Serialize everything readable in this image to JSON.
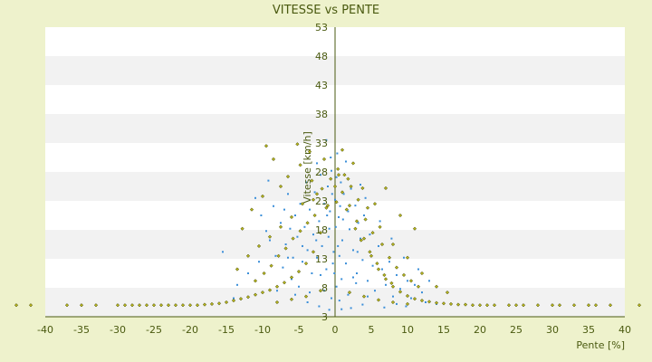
{
  "chart_data": {
    "type": "scatter",
    "title": "VITESSE vs PENTE",
    "xlabel": "Pente [%]",
    "ylabel": "Vitesse [km/h]",
    "xlim": [
      -40,
      40
    ],
    "ylim": [
      3,
      53
    ],
    "xticks": [
      "-40",
      "-35",
      "-30",
      "-25",
      "-20",
      "-15",
      "-10",
      "-5",
      "0",
      "5",
      "10",
      "15",
      "20",
      "25",
      "30",
      "35",
      "40"
    ],
    "yticks": [
      "53",
      "48",
      "43",
      "38",
      "33",
      "28",
      "23",
      "18",
      "13",
      "8",
      "3"
    ],
    "grid": "horizontal alternating bands",
    "legend": "none",
    "colors": {
      "background": "#eef2cc",
      "band_light": "#ffffff",
      "band_dark": "#f2f2f2",
      "axis": "#4a5a10",
      "series_a": "#3b8fd9",
      "series_b": "#b7b51f",
      "series_b_edge": "#3a3f00"
    },
    "series": [
      {
        "color": "#3b8fd9",
        "marker": "small dot",
        "points": [
          [
            -15.5,
            14.2
          ],
          [
            -11,
            23.5
          ],
          [
            -10.2,
            20.5
          ],
          [
            -9.5,
            17.8
          ],
          [
            -9,
            16.2
          ],
          [
            -8.5,
            22.1
          ],
          [
            -8.2,
            13.5
          ],
          [
            -7.5,
            19.2
          ],
          [
            -7.2,
            11.5
          ],
          [
            -6.8,
            15.5
          ],
          [
            -6.5,
            24.2
          ],
          [
            -6.2,
            18.2
          ],
          [
            -6,
            9.5
          ],
          [
            -5.8,
            13.2
          ],
          [
            -5.5,
            20.5
          ],
          [
            -5.2,
            16.8
          ],
          [
            -5,
            8.2
          ],
          [
            -4.8,
            22.5
          ],
          [
            -4.5,
            12.5
          ],
          [
            -4.2,
            18.5
          ],
          [
            -4,
            26.2
          ],
          [
            -3.8,
            14.5
          ],
          [
            -3.5,
            21.5
          ],
          [
            -3.2,
            10.5
          ],
          [
            -3,
            17.2
          ],
          [
            -2.8,
            24.5
          ],
          [
            -2.5,
            13.2
          ],
          [
            -2.2,
            19.5
          ],
          [
            -2,
            27.5
          ],
          [
            -1.8,
            15.2
          ],
          [
            -1.5,
            22.5
          ],
          [
            -1.2,
            11.2
          ],
          [
            -1,
            25.5
          ],
          [
            -0.8,
            18.2
          ],
          [
            -0.5,
            28.2
          ],
          [
            -0.2,
            14.2
          ],
          [
            0,
            23.2
          ],
          [
            0.2,
            27.1
          ],
          [
            0.5,
            20.2
          ],
          [
            0.8,
            26.2
          ],
          [
            1,
            16.2
          ],
          [
            1.2,
            24.2
          ],
          [
            1.5,
            12.2
          ],
          [
            1.8,
            21.2
          ],
          [
            2,
            18.1
          ],
          [
            2.2,
            25.1
          ],
          [
            2.5,
            14.5
          ],
          [
            2.8,
            22.2
          ],
          [
            3,
            10.5
          ],
          [
            3.2,
            19.2
          ],
          [
            3.5,
            16.5
          ],
          [
            3.8,
            12.8
          ],
          [
            4,
            20.5
          ],
          [
            4.5,
            9.2
          ],
          [
            4.8,
            17.2
          ],
          [
            5,
            13.5
          ],
          [
            5.5,
            7.5
          ],
          [
            6,
            15.2
          ],
          [
            6.5,
            11.2
          ],
          [
            7,
            8.5
          ],
          [
            7.5,
            12.5
          ],
          [
            8,
            6.5
          ],
          [
            8.5,
            10.2
          ],
          [
            9,
            7.8
          ],
          [
            9.5,
            13.2
          ],
          [
            10,
            9.2
          ],
          [
            10.5,
            6.2
          ],
          [
            11,
            8.5
          ],
          [
            11.5,
            11.2
          ],
          [
            12,
            7.2
          ],
          [
            13,
            9.2
          ],
          [
            -1.2,
            33.5
          ],
          [
            -0.6,
            30.5
          ],
          [
            0.3,
            31.2
          ],
          [
            -2.5,
            29.5
          ],
          [
            1.5,
            29.8
          ],
          [
            -9.2,
            26.5
          ],
          [
            -7,
            21.5
          ],
          [
            4.2,
            23.5
          ],
          [
            3.5,
            25.8
          ],
          [
            6.2,
            19.5
          ],
          [
            7.8,
            16.5
          ],
          [
            -12,
            10.5
          ],
          [
            -10.5,
            12.5
          ],
          [
            -13.5,
            8.5
          ],
          [
            -0.5,
            6.2
          ],
          [
            0.6,
            5.8
          ],
          [
            -1.5,
            7.5
          ],
          [
            1.8,
            6.8
          ],
          [
            2.5,
            9.8
          ],
          [
            -3.5,
            7.2
          ],
          [
            0.1,
            18.5
          ],
          [
            0.4,
            15.2
          ],
          [
            -0.3,
            12.2
          ],
          [
            -0.7,
            21.2
          ],
          [
            0.9,
            9.5
          ],
          [
            -0.9,
            16.8
          ],
          [
            0.6,
            13.5
          ],
          [
            -0.1,
            10.5
          ],
          [
            0.2,
            8.2
          ],
          [
            -0.4,
            24.2
          ],
          [
            0.7,
            22.1
          ],
          [
            1.1,
            19.8
          ],
          [
            -1.1,
            20.5
          ],
          [
            -2,
            10.2
          ],
          [
            -2.6,
            16.2
          ],
          [
            3.1,
            14.2
          ],
          [
            2.9,
            8.8
          ],
          [
            -4.5,
            15.2
          ],
          [
            5.2,
            11.8
          ],
          [
            -6.5,
            13.2
          ],
          [
            4.5,
            6.5
          ],
          [
            -5.5,
            6.8
          ],
          [
            8.5,
            5.2
          ],
          [
            -8,
            7.5
          ],
          [
            12.5,
            5.5
          ],
          [
            -11,
            6.8
          ],
          [
            9.8,
            4.8
          ],
          [
            -14,
            6.2
          ],
          [
            6.8,
            4.6
          ],
          [
            14,
            5.2
          ],
          [
            -2.2,
            4.8
          ],
          [
            2.2,
            4.5
          ],
          [
            -0.8,
            4.2
          ],
          [
            0.9,
            4.3
          ],
          [
            -3.8,
            5.5
          ],
          [
            3.8,
            5.1
          ]
        ]
      },
      {
        "color": "#b7b51f",
        "marker": "small diamond",
        "points": [
          [
            -44,
            5
          ],
          [
            -42,
            5
          ],
          [
            -37,
            5
          ],
          [
            -35,
            5
          ],
          [
            -33,
            5
          ],
          [
            -30,
            5
          ],
          [
            -29,
            5
          ],
          [
            -28,
            5
          ],
          [
            -27,
            5
          ],
          [
            -26,
            5
          ],
          [
            -25,
            5
          ],
          [
            -24,
            5
          ],
          [
            -23,
            5
          ],
          [
            -22,
            5
          ],
          [
            -21,
            5
          ],
          [
            -20,
            5
          ],
          [
            -19,
            5
          ],
          [
            -18,
            5.1
          ],
          [
            -17,
            5.2
          ],
          [
            -16,
            5.3
          ],
          [
            -15,
            5.5
          ],
          [
            -14,
            5.8
          ],
          [
            -13,
            6.1
          ],
          [
            -12,
            6.4
          ],
          [
            -11,
            6.8
          ],
          [
            -10,
            7.2
          ],
          [
            -9,
            7.6
          ],
          [
            -8,
            8.2
          ],
          [
            -7,
            8.9
          ],
          [
            -6,
            9.8
          ],
          [
            -5,
            10.8
          ],
          [
            -4,
            12.2
          ],
          [
            -3,
            14.2
          ],
          [
            -2,
            17.5
          ],
          [
            -1,
            22.2
          ],
          [
            0,
            25.5
          ],
          [
            1,
            24.5
          ],
          [
            2,
            22.2
          ],
          [
            3,
            19.5
          ],
          [
            4,
            16.5
          ],
          [
            5,
            13.5
          ],
          [
            6,
            11.2
          ],
          [
            7,
            9.5
          ],
          [
            8,
            8.2
          ],
          [
            9,
            7.3
          ],
          [
            10,
            6.6
          ],
          [
            11,
            6.1
          ],
          [
            12,
            5.8
          ],
          [
            13,
            5.6
          ],
          [
            14,
            5.4
          ],
          [
            15,
            5.3
          ],
          [
            16,
            5.2
          ],
          [
            17,
            5.1
          ],
          [
            18,
            5.1
          ],
          [
            19,
            5
          ],
          [
            20,
            5
          ],
          [
            21,
            5
          ],
          [
            22,
            5
          ],
          [
            24,
            5
          ],
          [
            25,
            5
          ],
          [
            26,
            5
          ],
          [
            28,
            5
          ],
          [
            30,
            5
          ],
          [
            31,
            5
          ],
          [
            33,
            5
          ],
          [
            35,
            5
          ],
          [
            36,
            5
          ],
          [
            38,
            5
          ],
          [
            42,
            5
          ],
          [
            -9.5,
            32.5
          ],
          [
            -8.5,
            30.2
          ],
          [
            -5.2,
            32.8
          ],
          [
            -4.8,
            29.2
          ],
          [
            -3.5,
            31.5
          ],
          [
            -1.5,
            30.2
          ],
          [
            1,
            31.8
          ],
          [
            2.5,
            29.5
          ],
          [
            5.5,
            22.5
          ],
          [
            7,
            25.2
          ],
          [
            11,
            18.2
          ],
          [
            9,
            20.5
          ],
          [
            -12.8,
            18.2
          ],
          [
            -11.5,
            21.5
          ],
          [
            -10,
            23.8
          ],
          [
            -7.5,
            25.5
          ],
          [
            -6.5,
            27.2
          ],
          [
            -3.2,
            26.5
          ],
          [
            -2.5,
            24.2
          ],
          [
            0.5,
            27.5
          ],
          [
            1.8,
            26.8
          ],
          [
            3.8,
            25.2
          ],
          [
            4.5,
            21.8
          ],
          [
            6.2,
            18.5
          ],
          [
            8,
            15.5
          ],
          [
            10,
            13.2
          ],
          [
            12,
            10.5
          ],
          [
            14,
            8.2
          ],
          [
            15.5,
            7.2
          ],
          [
            -13.5,
            11.2
          ],
          [
            -12,
            13.5
          ],
          [
            -10.5,
            15.2
          ],
          [
            -9,
            16.8
          ],
          [
            -7.5,
            18.5
          ],
          [
            -6,
            20.2
          ],
          [
            -4.5,
            22.5
          ],
          [
            -3,
            23.2
          ],
          [
            -1.8,
            25.1
          ],
          [
            -0.6,
            26.8
          ],
          [
            0.4,
            28.5
          ],
          [
            1.3,
            27.5
          ],
          [
            2.2,
            25.5
          ],
          [
            3.2,
            23.2
          ],
          [
            4.2,
            19.8
          ],
          [
            5.2,
            17.5
          ],
          [
            6.5,
            15.5
          ],
          [
            7.5,
            13.2
          ],
          [
            8.5,
            11.5
          ],
          [
            9.5,
            10.2
          ],
          [
            10.5,
            9.2
          ],
          [
            11.5,
            8.2
          ],
          [
            -11,
            9.2
          ],
          [
            -9.8,
            10.5
          ],
          [
            -8.8,
            11.8
          ],
          [
            -7.8,
            13.5
          ],
          [
            -6.8,
            14.8
          ],
          [
            -5.8,
            16.5
          ],
          [
            -4.8,
            17.8
          ],
          [
            -3.8,
            19.2
          ],
          [
            -2.8,
            20.5
          ],
          [
            -1.2,
            21.8
          ],
          [
            0.2,
            22.8
          ],
          [
            1.6,
            21.5
          ],
          [
            2.8,
            18.2
          ],
          [
            3.6,
            16.2
          ],
          [
            4.8,
            14.2
          ],
          [
            5.8,
            12.2
          ],
          [
            6.8,
            10.2
          ],
          [
            7.8,
            8.8
          ],
          [
            -8,
            5.5
          ],
          [
            -6,
            6
          ],
          [
            -4,
            6.5
          ],
          [
            -2,
            7.5
          ],
          [
            2,
            7.2
          ],
          [
            4,
            6.5
          ],
          [
            6,
            5.9
          ],
          [
            8,
            5.5
          ],
          [
            10,
            5.2
          ]
        ]
      }
    ]
  }
}
